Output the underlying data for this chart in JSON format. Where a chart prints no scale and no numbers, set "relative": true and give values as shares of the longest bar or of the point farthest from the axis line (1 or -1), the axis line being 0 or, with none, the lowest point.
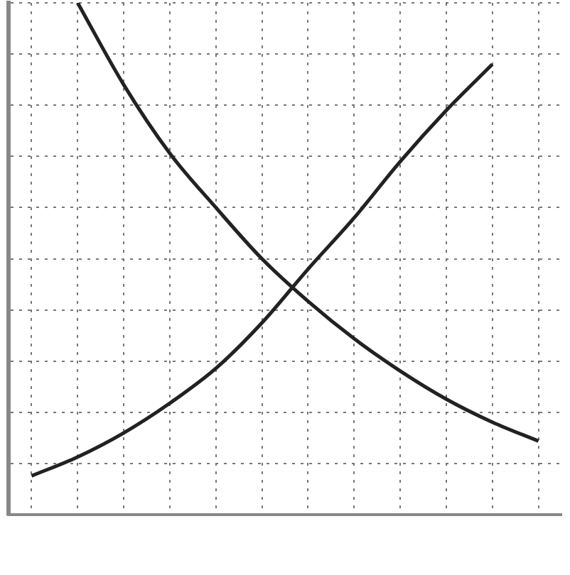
{
  "chart_data": {
    "type": "line",
    "relative": true,
    "grid": true,
    "line_style": "solid",
    "marker": "none",
    "categories": [
      null,
      null,
      null,
      null,
      null,
      null,
      null,
      null,
      null,
      null,
      null,
      null
    ],
    "series": [
      {
        "color": "#222222",
        "values": [
          0.076,
          0.113,
          0.16,
          0.218,
          0.286,
          0.375,
          0.48,
          0.58,
          0.69,
          0.79,
          0.88,
          null
        ]
      },
      {
        "color": "#222222",
        "values": [
          null,
          1.0,
          0.84,
          0.706,
          0.6,
          0.5,
          0.417,
          0.344,
          0.281,
          0.226,
          0.181,
          0.144
        ]
      }
    ]
  }
}
